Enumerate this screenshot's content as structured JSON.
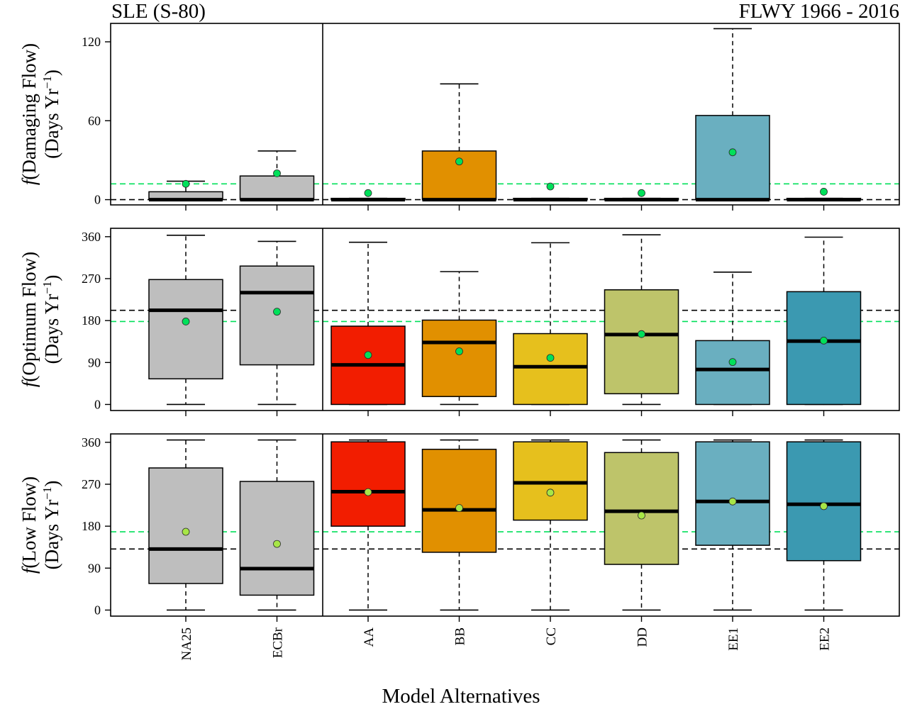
{
  "header": {
    "left": "SLE (S-80)",
    "right": "FLWY 1966 - 2016"
  },
  "chart_data": {
    "type": "box",
    "xlabel": "Model Alternatives",
    "categories": [
      "NA25",
      "ECBr",
      "AA",
      "BB",
      "CC",
      "DD",
      "EE1",
      "EE2"
    ],
    "colors": [
      "#BEBEBE",
      "#BEBEBE",
      "#F21D00",
      "#E19000",
      "#E6C01D",
      "#BEC46A",
      "#6AAFC0",
      "#3B99B1"
    ],
    "mean_point_color": "#00E05A",
    "mean_point_color_low": "#A7E647",
    "reference_line_colors": {
      "black": "#000000",
      "green": "#00E05A"
    },
    "panels": [
      {
        "id": "damaging",
        "ylabel_func": "f",
        "ylabel_main": "(Damaging Flow)",
        "ylabel_units": "(Days Yr",
        "ylabel_exp": "−1",
        "ylabel_close": ")",
        "ylim": [
          -4,
          134
        ],
        "yticks": [
          0,
          60,
          120
        ],
        "ref_black": 0,
        "ref_green": 12,
        "boxes": [
          {
            "cat": "NA25",
            "min": 0,
            "q1": 0,
            "median": 0,
            "q3": 6,
            "max": 14,
            "mean": 12
          },
          {
            "cat": "ECBr",
            "min": 0,
            "q1": 0,
            "median": 0,
            "q3": 18,
            "max": 37,
            "mean": 20
          },
          {
            "cat": "AA",
            "min": 0,
            "q1": 0,
            "median": 0,
            "q3": 1,
            "max": 1,
            "mean": 5
          },
          {
            "cat": "BB",
            "min": 0,
            "q1": 0,
            "median": 0,
            "q3": 37,
            "max": 88,
            "mean": 29
          },
          {
            "cat": "CC",
            "min": 0,
            "q1": 0,
            "median": 0,
            "q3": 1,
            "max": 1,
            "mean": 10
          },
          {
            "cat": "DD",
            "min": 0,
            "q1": 0,
            "median": 0,
            "q3": 1,
            "max": 1,
            "mean": 5
          },
          {
            "cat": "EE1",
            "min": 0,
            "q1": 0,
            "median": 0,
            "q3": 64,
            "max": 130,
            "mean": 36
          },
          {
            "cat": "EE2",
            "min": 0,
            "q1": 0,
            "median": 0,
            "q3": 1,
            "max": 1,
            "mean": 6
          }
        ]
      },
      {
        "id": "optimum",
        "ylabel_func": "f",
        "ylabel_main": "(Optimum Flow)",
        "ylabel_units": "(Days Yr",
        "ylabel_exp": "−1",
        "ylabel_close": ")",
        "ylim": [
          -13,
          378
        ],
        "yticks": [
          0,
          90,
          180,
          270,
          360
        ],
        "ref_black": 202,
        "ref_green": 178,
        "boxes": [
          {
            "cat": "NA25",
            "min": 0,
            "q1": 55,
            "median": 202,
            "q3": 268,
            "max": 363,
            "mean": 178
          },
          {
            "cat": "ECBr",
            "min": 0,
            "q1": 85,
            "median": 240,
            "q3": 297,
            "max": 350,
            "mean": 199
          },
          {
            "cat": "AA",
            "min": 0,
            "q1": 0,
            "median": 85,
            "q3": 168,
            "max": 348,
            "mean": 106
          },
          {
            "cat": "BB",
            "min": 0,
            "q1": 17,
            "median": 133,
            "q3": 181,
            "max": 285,
            "mean": 114
          },
          {
            "cat": "CC",
            "min": 0,
            "q1": 0,
            "median": 81,
            "q3": 152,
            "max": 347,
            "mean": 100
          },
          {
            "cat": "DD",
            "min": 0,
            "q1": 23,
            "median": 150,
            "q3": 246,
            "max": 364,
            "mean": 151
          },
          {
            "cat": "EE1",
            "min": 0,
            "q1": 0,
            "median": 75,
            "q3": 137,
            "max": 284,
            "mean": 91
          },
          {
            "cat": "EE2",
            "min": 0,
            "q1": 0,
            "median": 136,
            "q3": 242,
            "max": 359,
            "mean": 137
          }
        ]
      },
      {
        "id": "low",
        "ylabel_func": "f",
        "ylabel_main": "(Low Flow)",
        "ylabel_units": "(Days Yr",
        "ylabel_exp": "−1",
        "ylabel_close": ")",
        "ylim": [
          -13,
          378
        ],
        "yticks": [
          0,
          90,
          180,
          270,
          360
        ],
        "ref_black": 131,
        "ref_green": 168,
        "boxes": [
          {
            "cat": "NA25",
            "min": 0,
            "q1": 57,
            "median": 131,
            "q3": 305,
            "max": 365,
            "mean": 168
          },
          {
            "cat": "ECBr",
            "min": 0,
            "q1": 32,
            "median": 89,
            "q3": 276,
            "max": 365,
            "mean": 142
          },
          {
            "cat": "AA",
            "min": 0,
            "q1": 180,
            "median": 254,
            "q3": 361,
            "max": 365,
            "mean": 253
          },
          {
            "cat": "BB",
            "min": 0,
            "q1": 124,
            "median": 215,
            "q3": 345,
            "max": 365,
            "mean": 219
          },
          {
            "cat": "CC",
            "min": 0,
            "q1": 193,
            "median": 273,
            "q3": 361,
            "max": 365,
            "mean": 252
          },
          {
            "cat": "DD",
            "min": 0,
            "q1": 98,
            "median": 212,
            "q3": 338,
            "max": 365,
            "mean": 203
          },
          {
            "cat": "EE1",
            "min": 0,
            "q1": 139,
            "median": 233,
            "q3": 361,
            "max": 365,
            "mean": 233
          },
          {
            "cat": "EE2",
            "min": 0,
            "q1": 106,
            "median": 227,
            "q3": 361,
            "max": 365,
            "mean": 223
          }
        ]
      }
    ]
  }
}
